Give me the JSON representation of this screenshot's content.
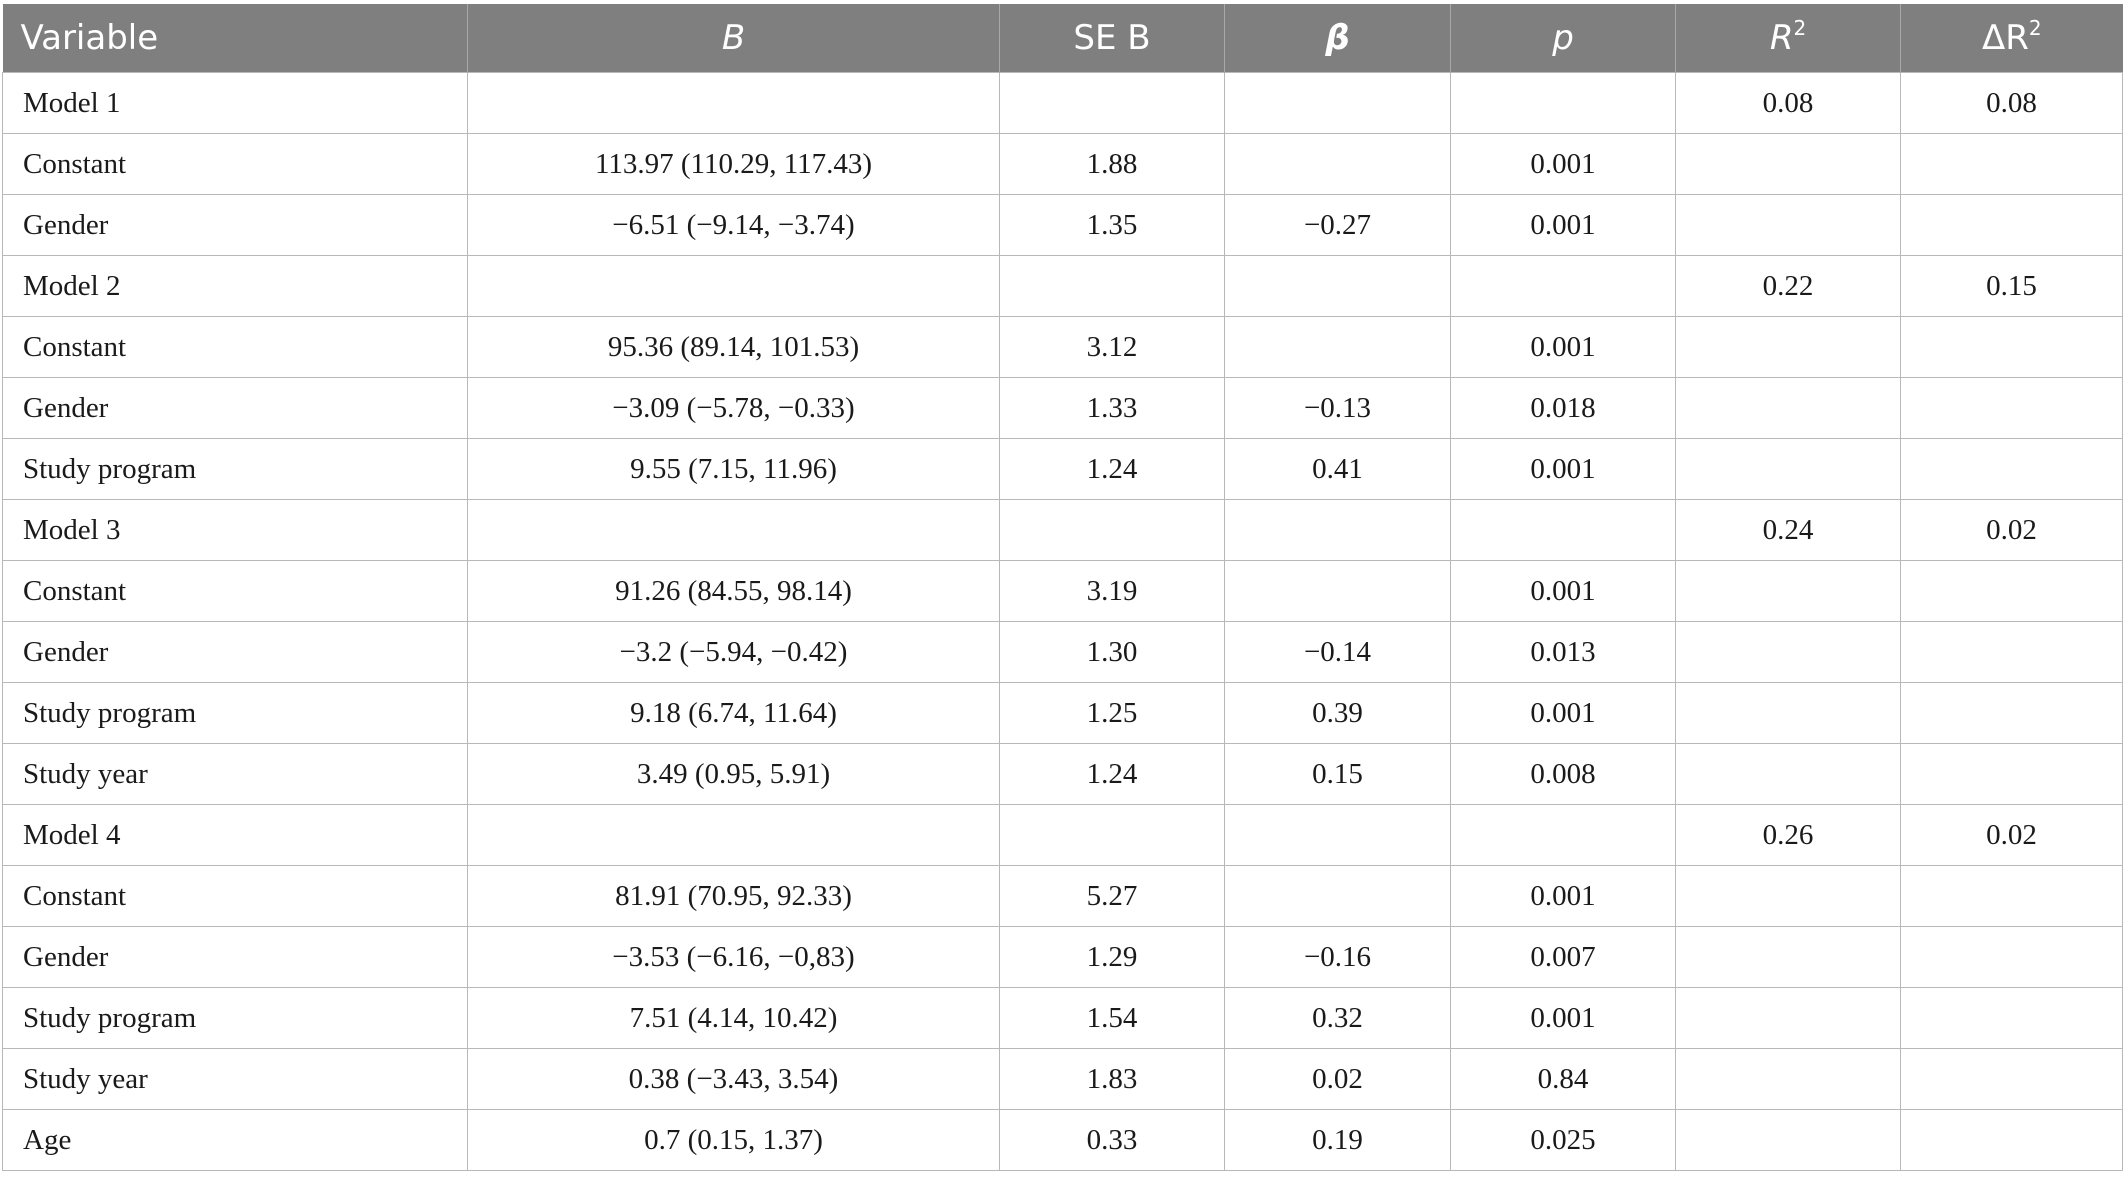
{
  "table": {
    "headers": {
      "variable": "Variable",
      "b": "B",
      "se_b": "SE B",
      "beta": "β",
      "p": "p",
      "r2_base": "R",
      "r2_sup": "2",
      "dr2_base": "ΔR",
      "dr2_sup": "2"
    },
    "rows": [
      {
        "variable": "Model 1",
        "b": "",
        "se_b": "",
        "beta": "",
        "p": "",
        "r2": "0.08",
        "dr2": "0.08"
      },
      {
        "variable": "Constant",
        "b": "113.97 (110.29, 117.43)",
        "se_b": "1.88",
        "beta": "",
        "p": "0.001",
        "r2": "",
        "dr2": ""
      },
      {
        "variable": "Gender",
        "b": "−6.51 (−9.14, −3.74)",
        "se_b": "1.35",
        "beta": "−0.27",
        "p": "0.001",
        "r2": "",
        "dr2": ""
      },
      {
        "variable": "Model 2",
        "b": "",
        "se_b": "",
        "beta": "",
        "p": "",
        "r2": "0.22",
        "dr2": "0.15"
      },
      {
        "variable": "Constant",
        "b": "95.36 (89.14, 101.53)",
        "se_b": "3.12",
        "beta": "",
        "p": "0.001",
        "r2": "",
        "dr2": ""
      },
      {
        "variable": "Gender",
        "b": "−3.09 (−5.78, −0.33)",
        "se_b": "1.33",
        "beta": "−0.13",
        "p": "0.018",
        "r2": "",
        "dr2": ""
      },
      {
        "variable": "Study program",
        "b": "9.55 (7.15, 11.96)",
        "se_b": "1.24",
        "beta": "0.41",
        "p": "0.001",
        "r2": "",
        "dr2": ""
      },
      {
        "variable": "Model 3",
        "b": "",
        "se_b": "",
        "beta": "",
        "p": "",
        "r2": "0.24",
        "dr2": "0.02"
      },
      {
        "variable": "Constant",
        "b": "91.26 (84.55, 98.14)",
        "se_b": "3.19",
        "beta": "",
        "p": "0.001",
        "r2": "",
        "dr2": ""
      },
      {
        "variable": "Gender",
        "b": "−3.2 (−5.94, −0.42)",
        "se_b": "1.30",
        "beta": "−0.14",
        "p": "0.013",
        "r2": "",
        "dr2": ""
      },
      {
        "variable": "Study program",
        "b": "9.18 (6.74, 11.64)",
        "se_b": "1.25",
        "beta": "0.39",
        "p": "0.001",
        "r2": "",
        "dr2": ""
      },
      {
        "variable": "Study year",
        "b": "3.49 (0.95, 5.91)",
        "se_b": "1.24",
        "beta": "0.15",
        "p": "0.008",
        "r2": "",
        "dr2": ""
      },
      {
        "variable": "Model 4",
        "b": "",
        "se_b": "",
        "beta": "",
        "p": "",
        "r2": "0.26",
        "dr2": "0.02"
      },
      {
        "variable": "Constant",
        "b": "81.91 (70.95, 92.33)",
        "se_b": "5.27",
        "beta": "",
        "p": "0.001",
        "r2": "",
        "dr2": ""
      },
      {
        "variable": "Gender",
        "b": "−3.53 (−6.16, −0,83)",
        "se_b": "1.29",
        "beta": "−0.16",
        "p": "0.007",
        "r2": "",
        "dr2": ""
      },
      {
        "variable": "Study program",
        "b": "7.51 (4.14, 10.42)",
        "se_b": "1.54",
        "beta": "0.32",
        "p": "0.001",
        "r2": "",
        "dr2": ""
      },
      {
        "variable": "Study year",
        "b": "0.38 (−3.43, 3.54)",
        "se_b": "1.83",
        "beta": "0.02",
        "p": "0.84",
        "r2": "",
        "dr2": ""
      },
      {
        "variable": "Age",
        "b": "0.7 (0.15, 1.37)",
        "se_b": "0.33",
        "beta": "0.19",
        "p": "0.025",
        "r2": "",
        "dr2": ""
      }
    ]
  }
}
